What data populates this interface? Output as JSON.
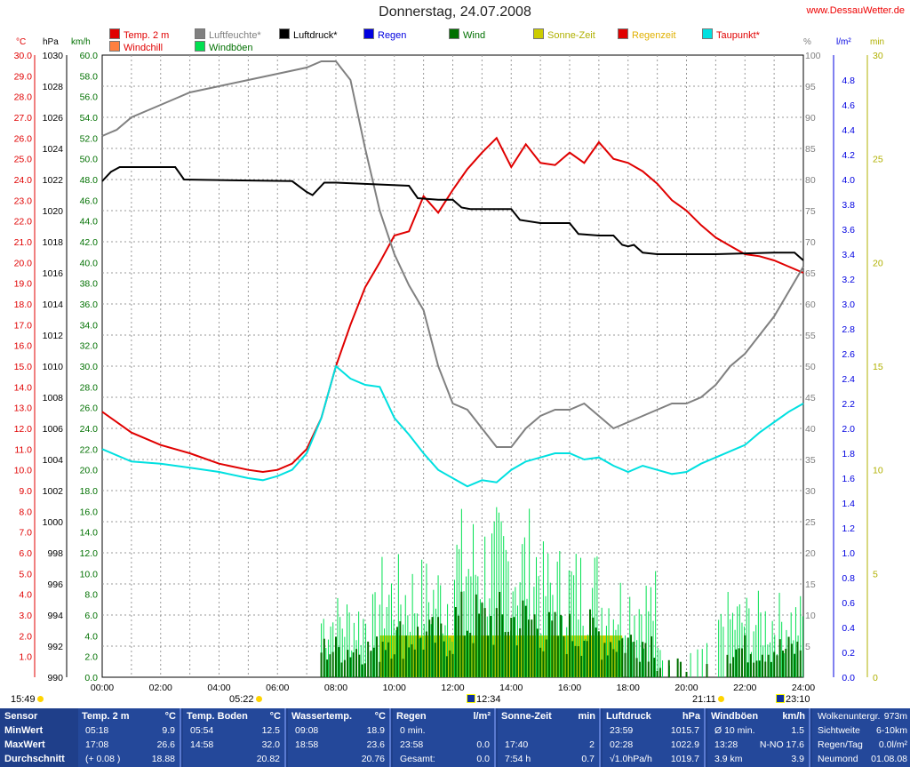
{
  "header": {
    "title": "Donnerstag, 24.07.2008",
    "site": "www.DessauWetter.de"
  },
  "legend": [
    {
      "label": "Temp. 2 m",
      "color": "#e00000",
      "text_color": "#e00000"
    },
    {
      "label": "Luftfeuchte*",
      "color": "#808080",
      "text_color": "#808080"
    },
    {
      "label": "Luftdruck*",
      "color": "#000000",
      "text_color": "#000000"
    },
    {
      "label": "Regen",
      "color": "#0000e0",
      "text_color": "#0000e0"
    },
    {
      "label": "Wind",
      "color": "#007000",
      "text_color": "#007000"
    },
    {
      "label": "Sonne-Zeit",
      "color": "#cccc00",
      "text_color": "#b0b000"
    },
    {
      "label": "Regenzeit",
      "color": "#e00000",
      "text_color": "#e0b000"
    },
    {
      "label": "Taupunkt*",
      "color": "#00e0e0",
      "text_color": "#e00000"
    },
    {
      "label": "Windchill",
      "color": "#ff8040",
      "text_color": "#e00000"
    },
    {
      "label": "Windböen",
      "color": "#00e050",
      "text_color": "#007000"
    }
  ],
  "axis_units": {
    "temp": "°C",
    "pressure": "hPa",
    "wind": "km/h",
    "humidity": "%",
    "rain": "l/m²",
    "minutes": "min"
  },
  "chart_data": {
    "type": "line",
    "x_label_hours": [
      "00:00",
      "02:00",
      "04:00",
      "06:00",
      "08:00",
      "10:00",
      "12:00",
      "14:00",
      "16:00",
      "18:00",
      "20:00",
      "22:00",
      "24:00"
    ],
    "axes": {
      "temp": {
        "min": 1.0,
        "max": 30.0,
        "step": 1.0
      },
      "pressure": {
        "min": 990,
        "max": 1030,
        "step": 2
      },
      "wind": {
        "min": 0.0,
        "max": 60.0,
        "step": 2.0
      },
      "humidity": {
        "min": 5,
        "max": 100,
        "step": 5
      },
      "rain": {
        "min": 0.2,
        "max": 4.8,
        "step": 0.2
      },
      "minutes": {
        "min": 5,
        "max": 30,
        "step": 5
      }
    },
    "series": [
      {
        "name": "Temp. 2 m",
        "axis": "temp",
        "color": "#e00000",
        "x": [
          0,
          1,
          2,
          3,
          4,
          5,
          5.5,
          6,
          6.5,
          7,
          7.5,
          8,
          8.5,
          9,
          9.5,
          10,
          10.5,
          11,
          11.5,
          12,
          12.5,
          13,
          13.5,
          14,
          14.5,
          15,
          15.5,
          16,
          16.5,
          17,
          17.5,
          18,
          18.5,
          19,
          19.5,
          20,
          20.5,
          21,
          21.5,
          22,
          22.5,
          23,
          23.5,
          24
        ],
        "y": [
          12.8,
          11.8,
          11.2,
          10.8,
          10.3,
          10.0,
          9.9,
          10.0,
          10.3,
          11.0,
          12.5,
          15.0,
          17.0,
          18.8,
          20.0,
          21.3,
          21.5,
          23.2,
          22.4,
          23.5,
          24.5,
          25.3,
          26.0,
          24.6,
          25.7,
          24.8,
          24.7,
          25.3,
          24.8,
          25.8,
          25.0,
          24.8,
          24.4,
          23.8,
          23.0,
          22.5,
          21.8,
          21.2,
          20.8,
          20.4,
          20.3,
          20.1,
          19.8,
          19.5
        ]
      },
      {
        "name": "Taupunkt*",
        "axis": "temp",
        "color": "#00e0e0",
        "x": [
          0,
          1,
          2,
          3,
          4,
          5,
          5.5,
          6,
          6.5,
          7,
          7.5,
          8,
          8.5,
          9,
          9.5,
          10,
          10.5,
          11,
          11.5,
          12,
          12.5,
          13,
          13.5,
          14,
          14.5,
          15,
          15.5,
          16,
          16.5,
          17,
          17.5,
          18,
          18.5,
          19,
          19.5,
          20,
          20.5,
          21,
          21.5,
          22,
          22.5,
          23,
          23.5,
          24
        ],
        "y": [
          11.0,
          10.4,
          10.3,
          10.1,
          9.9,
          9.6,
          9.5,
          9.7,
          10.0,
          10.8,
          12.5,
          15.0,
          14.4,
          14.1,
          14.0,
          12.5,
          11.7,
          10.8,
          10.0,
          9.6,
          9.2,
          9.5,
          9.4,
          10.0,
          10.4,
          10.6,
          10.8,
          10.8,
          10.5,
          10.6,
          10.2,
          9.9,
          10.2,
          10.0,
          9.8,
          9.9,
          10.3,
          10.6,
          10.9,
          11.2,
          11.8,
          12.3,
          12.8,
          13.2
        ]
      },
      {
        "name": "Luftfeuchte*",
        "axis": "humidity",
        "color": "#808080",
        "x": [
          0,
          0.5,
          1,
          1.5,
          2,
          2.5,
          3,
          4,
          5,
          6,
          7,
          7.5,
          8,
          8.5,
          9,
          9.5,
          10,
          10.5,
          11,
          11.5,
          12,
          12.5,
          13,
          13.5,
          14,
          14.5,
          15,
          15.5,
          16,
          16.5,
          17,
          17.5,
          18,
          18.5,
          19,
          19.5,
          20,
          20.5,
          21,
          21.5,
          22,
          22.5,
          23,
          23.5,
          24
        ],
        "y": [
          87,
          88,
          90,
          91,
          92,
          93,
          94,
          95,
          96,
          97,
          98,
          99,
          99,
          96,
          85,
          75,
          68,
          63,
          59,
          50,
          44,
          43,
          40,
          37,
          37,
          40,
          42,
          43,
          43,
          44,
          42,
          40,
          41,
          42,
          43,
          44,
          44,
          45,
          47,
          50,
          52,
          55,
          58,
          62,
          66
        ]
      },
      {
        "name": "Luftdruck*",
        "axis": "pressure",
        "color": "#000000",
        "x": [
          0,
          0.3,
          0.6,
          2.5,
          2.8,
          6.5,
          7.0,
          7.2,
          7.6,
          8,
          10.5,
          10.8,
          11.5,
          12,
          12.3,
          12.6,
          14,
          14.3,
          15,
          15.3,
          16,
          16.3,
          17,
          17.5,
          17.8,
          18,
          18.2,
          18.5,
          19,
          21,
          23,
          23.7,
          24
        ],
        "y": [
          1021.9,
          1022.5,
          1022.8,
          1022.8,
          1022.0,
          1021.9,
          1021.2,
          1021.0,
          1021.8,
          1021.8,
          1021.6,
          1020.8,
          1020.7,
          1020.7,
          1020.2,
          1020.1,
          1020.1,
          1019.4,
          1019.2,
          1019.2,
          1019.2,
          1018.5,
          1018.4,
          1018.4,
          1017.8,
          1017.7,
          1017.8,
          1017.3,
          1017.2,
          1017.2,
          1017.3,
          1017.3,
          1016.8
        ]
      }
    ],
    "bars": {
      "wind_gusts": {
        "axis": "wind",
        "color": "#00e050",
        "start": 7.5,
        "end": 24.0
      },
      "wind": {
        "axis": "wind",
        "color": "#007000",
        "start": 7.5,
        "end": 24.0
      },
      "sun_minutes": {
        "axis": "minutes",
        "color": "#cccc00",
        "start": 9.5,
        "end": 17.8,
        "value": 2
      }
    }
  },
  "bottom_times": {
    "left": "15:49",
    "sunrise": "05:22",
    "moonset": "12:34",
    "sunset": "21:11",
    "moonrise": "23:10"
  },
  "panel": {
    "row_labels": [
      "Sensor",
      "MinWert",
      "MaxWert",
      "Durchschnitt"
    ],
    "columns": [
      {
        "title": "Temp. 2 m",
        "unit": "°C",
        "rows": [
          [
            "05:18",
            "9.9"
          ],
          [
            "17:08",
            "26.6"
          ],
          [
            "(+ 0.08 )",
            "18.88"
          ]
        ]
      },
      {
        "title": "Temp. Boden",
        "unit": "°C",
        "rows": [
          [
            "05:54",
            "12.5"
          ],
          [
            "14:58",
            "32.0"
          ],
          [
            "",
            "20.82"
          ]
        ]
      },
      {
        "title": "Wassertemp.",
        "unit": "°C",
        "rows": [
          [
            "09:08",
            "18.9"
          ],
          [
            "18:58",
            "23.6"
          ],
          [
            "",
            "20.76"
          ]
        ]
      },
      {
        "title": "Regen",
        "unit": "l/m²",
        "rows": [
          [
            "0 min.",
            ""
          ],
          [
            "23:58",
            "0.0"
          ],
          [
            "Gesamt:",
            "0.0"
          ]
        ]
      },
      {
        "title": "Sonne-Zeit",
        "unit": "min",
        "rows": [
          [
            "",
            ""
          ],
          [
            "17:40",
            "2"
          ],
          [
            "7:54 h",
            "0.7"
          ]
        ]
      },
      {
        "title": "Luftdruck",
        "unit": "hPa",
        "rows": [
          [
            "23:59",
            "1015.7"
          ],
          [
            "02:28",
            "1022.9"
          ],
          [
            "√1.0hPa/h",
            "1019.7"
          ]
        ]
      },
      {
        "title": "Windböen",
        "unit": "km/h",
        "rows": [
          [
            "Ø 10 min.",
            "1.5"
          ],
          [
            "13:28",
            "N-NO 17.6"
          ],
          [
            "3.9 km",
            "3.9"
          ]
        ]
      }
    ],
    "extra": [
      {
        "label": "Wolkenuntergr.",
        "value": "973m"
      },
      {
        "label": "Sichtweite",
        "value": "6-10km"
      },
      {
        "label": "Regen/Tag",
        "value": "0.0l/m²"
      },
      {
        "label": "Neumond",
        "value": "01.08.08"
      }
    ]
  }
}
